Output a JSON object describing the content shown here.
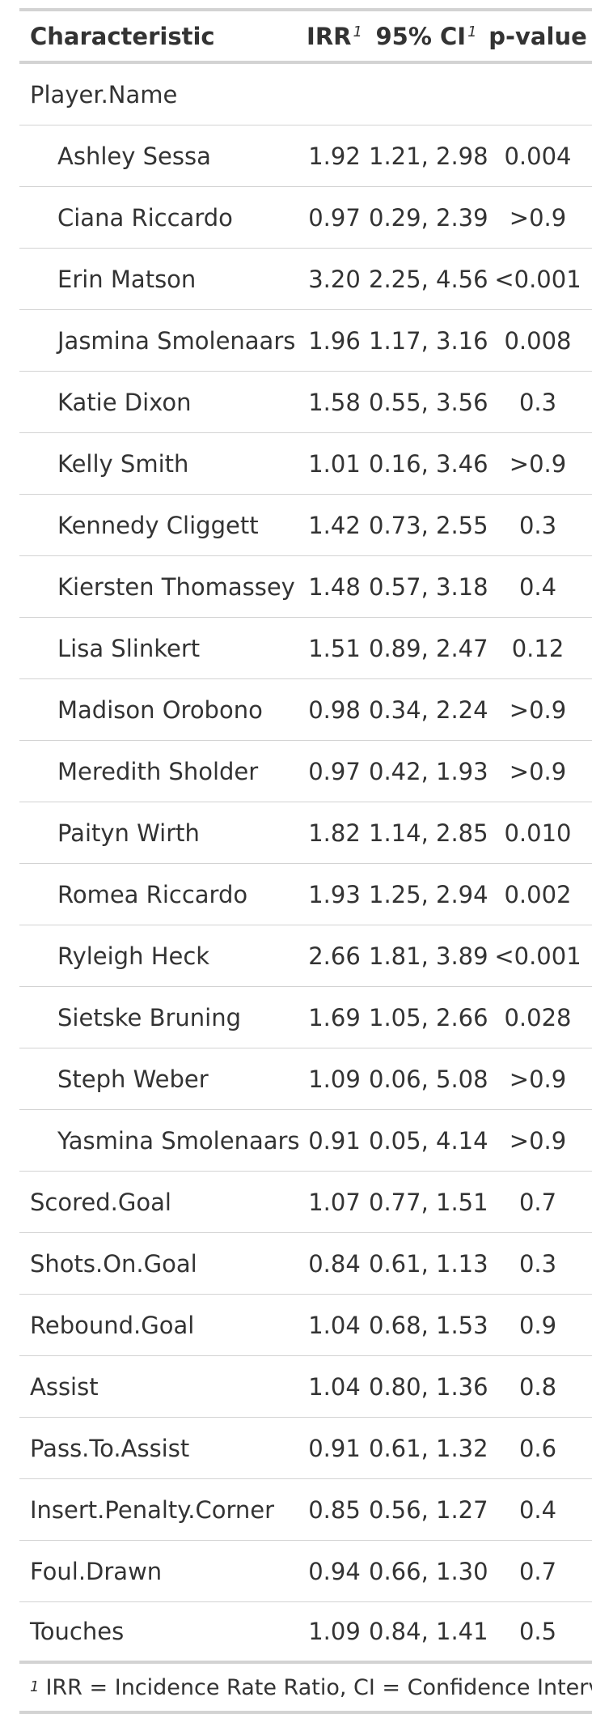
{
  "header": {
    "characteristic": "Characteristic",
    "irr": "IRR",
    "ci": "95% CI",
    "pvalue": "p-value",
    "footnote_mark": "1"
  },
  "group_label": "Player.Name",
  "players": [
    {
      "name": "Ashley Sessa",
      "irr": "1.92",
      "ci": "1.21, 2.98",
      "p": "0.004"
    },
    {
      "name": "Ciana Riccardo",
      "irr": "0.97",
      "ci": "0.29, 2.39",
      "p": ">0.9"
    },
    {
      "name": "Erin Matson",
      "irr": "3.20",
      "ci": "2.25, 4.56",
      "p": "<0.001"
    },
    {
      "name": "Jasmina Smolenaars",
      "irr": "1.96",
      "ci": "1.17, 3.16",
      "p": "0.008"
    },
    {
      "name": "Katie Dixon",
      "irr": "1.58",
      "ci": "0.55, 3.56",
      "p": "0.3"
    },
    {
      "name": "Kelly Smith",
      "irr": "1.01",
      "ci": "0.16, 3.46",
      "p": ">0.9"
    },
    {
      "name": "Kennedy Cliggett",
      "irr": "1.42",
      "ci": "0.73, 2.55",
      "p": "0.3"
    },
    {
      "name": "Kiersten Thomassey",
      "irr": "1.48",
      "ci": "0.57, 3.18",
      "p": "0.4"
    },
    {
      "name": "Lisa Slinkert",
      "irr": "1.51",
      "ci": "0.89, 2.47",
      "p": "0.12"
    },
    {
      "name": "Madison Orobono",
      "irr": "0.98",
      "ci": "0.34, 2.24",
      "p": ">0.9"
    },
    {
      "name": "Meredith Sholder",
      "irr": "0.97",
      "ci": "0.42, 1.93",
      "p": ">0.9"
    },
    {
      "name": "Paityn Wirth",
      "irr": "1.82",
      "ci": "1.14, 2.85",
      "p": "0.010"
    },
    {
      "name": "Romea Riccardo",
      "irr": "1.93",
      "ci": "1.25, 2.94",
      "p": "0.002"
    },
    {
      "name": "Ryleigh Heck",
      "irr": "2.66",
      "ci": "1.81, 3.89",
      "p": "<0.001"
    },
    {
      "name": "Sietske Bruning",
      "irr": "1.69",
      "ci": "1.05, 2.66",
      "p": "0.028"
    },
    {
      "name": "Steph Weber",
      "irr": "1.09",
      "ci": "0.06, 5.08",
      "p": ">0.9"
    },
    {
      "name": "Yasmina Smolenaars",
      "irr": "0.91",
      "ci": "0.05, 4.14",
      "p": ">0.9"
    }
  ],
  "variables": [
    {
      "name": "Scored.Goal",
      "irr": "1.07",
      "ci": "0.77, 1.51",
      "p": "0.7"
    },
    {
      "name": "Shots.On.Goal",
      "irr": "0.84",
      "ci": "0.61, 1.13",
      "p": "0.3"
    },
    {
      "name": "Rebound.Goal",
      "irr": "1.04",
      "ci": "0.68, 1.53",
      "p": "0.9"
    },
    {
      "name": "Assist",
      "irr": "1.04",
      "ci": "0.80, 1.36",
      "p": "0.8"
    },
    {
      "name": "Pass.To.Assist",
      "irr": "0.91",
      "ci": "0.61, 1.32",
      "p": "0.6"
    },
    {
      "name": "Insert.Penalty.Corner",
      "irr": "0.85",
      "ci": "0.56, 1.27",
      "p": "0.4"
    },
    {
      "name": "Foul.Drawn",
      "irr": "0.94",
      "ci": "0.66, 1.30",
      "p": "0.7"
    },
    {
      "name": "Touches",
      "irr": "1.09",
      "ci": "0.84, 1.41",
      "p": "0.5"
    }
  ],
  "footnote": {
    "mark": "1",
    "text": "IRR = Incidence Rate Ratio, CI = Confidence Interval"
  }
}
